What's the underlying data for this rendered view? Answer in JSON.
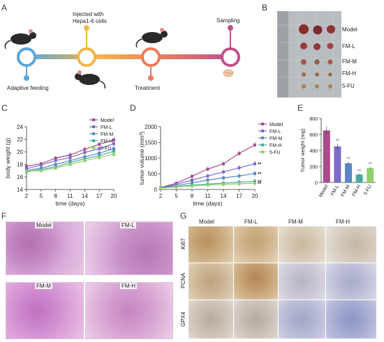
{
  "panels": {
    "A": "A",
    "B": "B",
    "C": "C",
    "D": "D",
    "E": "E",
    "F": "F",
    "G": "G"
  },
  "timeline": {
    "adaptive": "Adaptive feeding",
    "injected_line1": "Injected with",
    "injected_line2": "Hepa1-6 cells",
    "treatment": "Treatment",
    "sampling": "Sampling"
  },
  "panel_b": {
    "rows": [
      "Model",
      "FM-L",
      "FM-M",
      "FM-H",
      "5-FU"
    ]
  },
  "groups": [
    "Model",
    "FM-L",
    "FM-M",
    "FM-H",
    "5-FU"
  ],
  "colors": {
    "Model": "#a64d8c",
    "FM-L": "#7a6cc8",
    "FM-M": "#5b86c4",
    "FM-H": "#4aa8a0",
    "5-FU": "#8fd16a"
  },
  "chart_data": [
    {
      "type": "line",
      "xlabel": "time (days)",
      "ylabel": "body weight (g)",
      "x": [
        2,
        5,
        8,
        11,
        14,
        17,
        20
      ],
      "ylim": [
        14,
        24
      ],
      "yticks": [
        14,
        16,
        18,
        20,
        22,
        24
      ],
      "series": [
        {
          "name": "Model",
          "values": [
            17.7,
            18.1,
            19.0,
            19.5,
            20.4,
            21.2,
            21.9
          ]
        },
        {
          "name": "FM-L",
          "values": [
            17.3,
            17.9,
            18.6,
            19.1,
            19.9,
            20.5,
            21.3
          ]
        },
        {
          "name": "FM-M",
          "values": [
            17.0,
            17.4,
            18.0,
            18.6,
            19.2,
            19.8,
            20.5
          ]
        },
        {
          "name": "FM-H",
          "values": [
            16.8,
            17.2,
            17.6,
            18.3,
            18.9,
            19.4,
            20.1
          ]
        },
        {
          "name": "5-FU",
          "values": [
            16.9,
            17.0,
            17.4,
            18.0,
            18.6,
            19.1,
            19.6
          ]
        }
      ]
    },
    {
      "type": "line",
      "xlabel": "time (days)",
      "ylabel": "tumor volume (mm³)",
      "x": [
        2,
        5,
        8,
        11,
        14,
        17,
        20
      ],
      "ylim": [
        0,
        2000
      ],
      "yticks": [
        0,
        500,
        1000,
        1500,
        2000
      ],
      "annotations": [
        "**",
        "**",
        "**",
        "**"
      ],
      "series": [
        {
          "name": "Model",
          "values": [
            60,
            200,
            420,
            650,
            820,
            1150,
            1420
          ]
        },
        {
          "name": "FM-L",
          "values": [
            55,
            160,
            300,
            430,
            560,
            690,
            820
          ]
        },
        {
          "name": "FM-M",
          "values": [
            50,
            120,
            210,
            300,
            370,
            430,
            510
          ]
        },
        {
          "name": "FM-H",
          "values": [
            45,
            90,
            140,
            170,
            200,
            230,
            260
          ]
        },
        {
          "name": "5-FU",
          "values": [
            40,
            80,
            110,
            140,
            160,
            180,
            200
          ]
        }
      ]
    },
    {
      "type": "bar",
      "ylabel": "Tumor weight (mg)",
      "categories": [
        "Model",
        "FM-L",
        "FM-M",
        "FM-H",
        "5-FU"
      ],
      "values": [
        650,
        450,
        240,
        100,
        180
      ],
      "ylim": [
        0,
        800
      ],
      "yticks": [
        0,
        200,
        400,
        600,
        800
      ],
      "annotations": [
        "**",
        "**",
        "**",
        "**"
      ]
    }
  ],
  "panel_f": {
    "labels": [
      "Model",
      "FM-L",
      "FM-M",
      "FM-H"
    ]
  },
  "panel_g": {
    "cols": [
      "Model",
      "FM-L",
      "FM-M",
      "FM-H"
    ],
    "rows": [
      "Ki67",
      "PCNA",
      "GPX4"
    ]
  }
}
